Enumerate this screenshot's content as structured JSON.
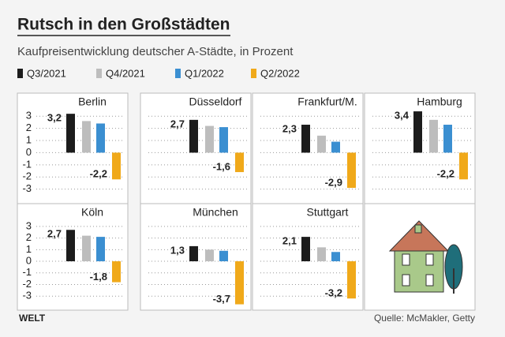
{
  "chart_data": {
    "type": "bar",
    "title": "Rutsch in den Großstädten",
    "subtitle": "Kaufpreisentwicklung deutscher A-Städte, in Prozent",
    "categories": [
      "Berlin",
      "Düsseldorf",
      "Frankfurt/M.",
      "Hamburg",
      "Köln",
      "München",
      "Stuttgart"
    ],
    "series": [
      {
        "name": "Q3/2021",
        "color": "#1c1c1c",
        "values": [
          3.2,
          2.7,
          2.3,
          3.4,
          2.7,
          1.3,
          2.1
        ],
        "value_labels": [
          "3,2",
          "2,7",
          "2,3",
          "3,4",
          "2,7",
          "1,3",
          "2,1"
        ]
      },
      {
        "name": "Q4/2021",
        "color": "#bdbdbd",
        "values": [
          2.6,
          2.2,
          1.4,
          2.7,
          2.2,
          1.0,
          1.2
        ]
      },
      {
        "name": "Q1/2022",
        "color": "#3b8fd1",
        "values": [
          2.4,
          2.1,
          0.9,
          2.3,
          2.1,
          0.9,
          0.8
        ]
      },
      {
        "name": "Q2/2022",
        "color": "#f0a91a",
        "values": [
          -2.2,
          -1.6,
          -2.9,
          -2.2,
          -1.8,
          -3.7,
          -3.2
        ],
        "value_labels": [
          "-2,2",
          "-1,6",
          "-2,9",
          "-2,2",
          "-1,8",
          "-3,7",
          "-3,2"
        ]
      }
    ],
    "ylim": [
      -4,
      3.6
    ],
    "yticks": [
      3,
      2,
      1,
      0,
      -1,
      -2,
      -3
    ],
    "grid": true,
    "logo": "WELT",
    "source": "Quelle: McMakler, Getty"
  }
}
